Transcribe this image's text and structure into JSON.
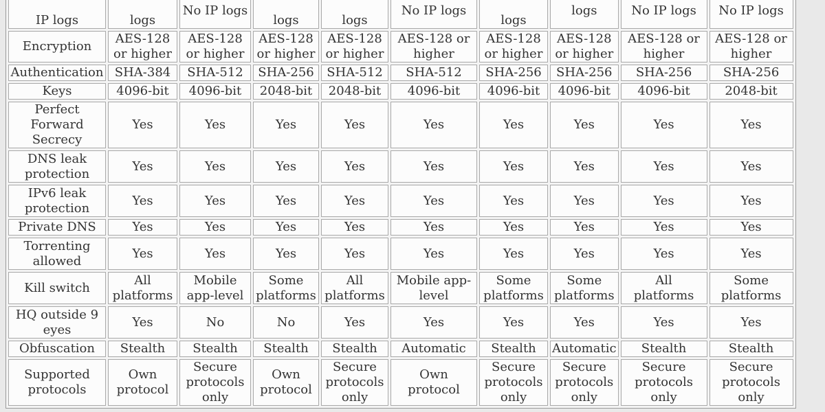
{
  "columns": 9,
  "rows": [
    {
      "label": "IP logs",
      "values": [
        "logs",
        "No IP logs",
        "logs",
        "logs",
        "No IP logs",
        "logs",
        "No IP logs",
        "No IP logs",
        "No IP logs"
      ]
    },
    {
      "label": "Encryption",
      "values": [
        "AES-128\nor higher",
        "AES-128\nor higher",
        "AES-128\nor higher",
        "AES-128\nor higher",
        "AES-128 or\nhigher",
        "AES-128\nor higher",
        "AES-128\nor higher",
        "AES-128 or\nhigher",
        "AES-128 or\nhigher"
      ]
    },
    {
      "label": "Authentication",
      "values": [
        "SHA-384",
        "SHA-512",
        "SHA-256",
        "SHA-512",
        "SHA-512",
        "SHA-256",
        "SHA-256",
        "SHA-256",
        "SHA-256"
      ]
    },
    {
      "label": "Keys",
      "values": [
        "4096-bit",
        "4096-bit",
        "2048-bit",
        "2048-bit",
        "4096-bit",
        "4096-bit",
        "4096-bit",
        "4096-bit",
        "2048-bit"
      ]
    },
    {
      "label": "Perfect\nForward\nSecrecy",
      "values": [
        "Yes",
        "Yes",
        "Yes",
        "Yes",
        "Yes",
        "Yes",
        "Yes",
        "Yes",
        "Yes"
      ]
    },
    {
      "label": "DNS leak\nprotection",
      "values": [
        "Yes",
        "Yes",
        "Yes",
        "Yes",
        "Yes",
        "Yes",
        "Yes",
        "Yes",
        "Yes"
      ]
    },
    {
      "label": "IPv6 leak\nprotection",
      "values": [
        "Yes",
        "Yes",
        "Yes",
        "Yes",
        "Yes",
        "Yes",
        "Yes",
        "Yes",
        "Yes"
      ]
    },
    {
      "label": "Private DNS",
      "values": [
        "Yes",
        "Yes",
        "Yes",
        "Yes",
        "Yes",
        "Yes",
        "Yes",
        "Yes",
        "Yes"
      ]
    },
    {
      "label": "Torrenting\nallowed",
      "values": [
        "Yes",
        "Yes",
        "Yes",
        "Yes",
        "Yes",
        "Yes",
        "Yes",
        "Yes",
        "Yes"
      ]
    },
    {
      "label": "Kill switch",
      "values": [
        "All\nplatforms",
        "Mobile\napp-level",
        "Some\nplatforms",
        "All\nplatforms",
        "Mobile app-\nlevel",
        "Some\nplatforms",
        "Some\nplatforms",
        "All\nplatforms",
        "Some\nplatforms"
      ]
    },
    {
      "label": "HQ outside 9\neyes",
      "values": [
        "Yes",
        "No",
        "No",
        "Yes",
        "Yes",
        "Yes",
        "Yes",
        "Yes",
        "Yes"
      ]
    },
    {
      "label": "Obfuscation",
      "values": [
        "Stealth",
        "Stealth",
        "Stealth",
        "Stealth",
        "Automatic",
        "Stealth",
        "Automatic",
        "Stealth",
        "Stealth"
      ]
    },
    {
      "label": "Supported\nprotocols",
      "values": [
        "Own\nprotocol",
        "Secure\nprotocols\nonly",
        "Own\nprotocol",
        "Secure\nprotocols\nonly",
        "Own\nprotocol",
        "Secure\nprotocols\nonly",
        "Secure\nprotocols\nonly",
        "Secure\nprotocols\nonly",
        "Secure\nprotocols\nonly"
      ]
    }
  ]
}
